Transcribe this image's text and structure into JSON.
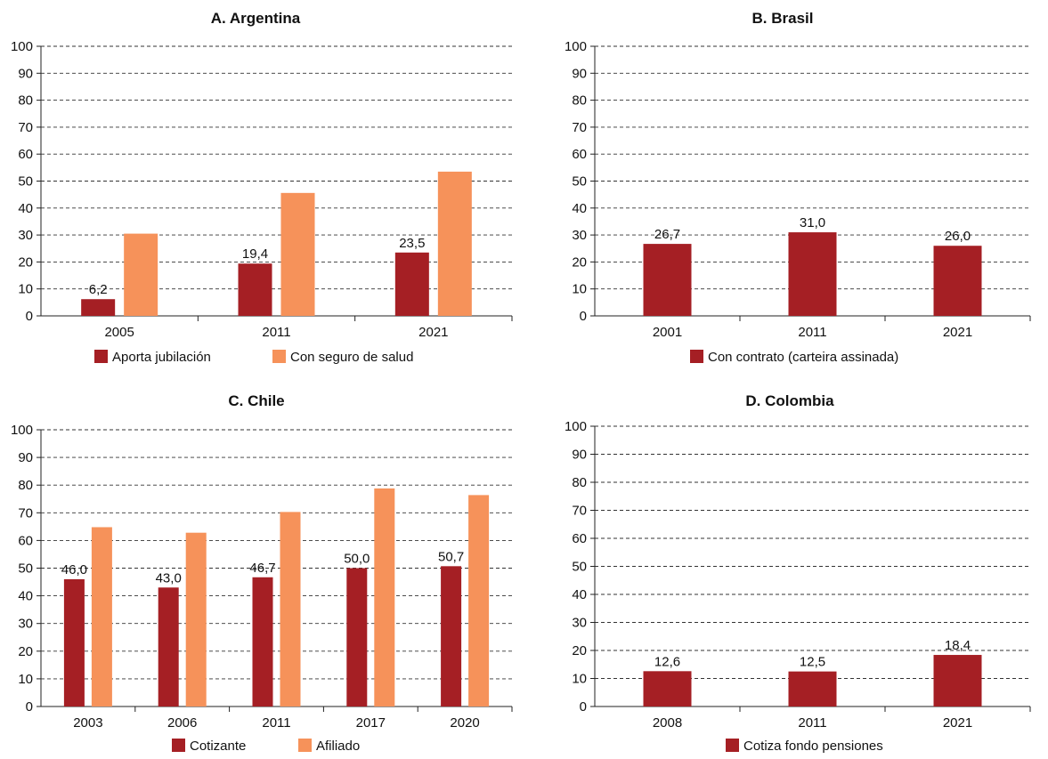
{
  "colors": {
    "dark_red": "#a51f24",
    "orange": "#f6925a"
  },
  "chart_data": [
    {
      "type": "bar",
      "title": "A. Argentina",
      "categories": [
        "2005",
        "2011",
        "2021"
      ],
      "ylim": [
        0,
        100
      ],
      "yticks": [
        0,
        10,
        20,
        30,
        40,
        50,
        60,
        70,
        80,
        90,
        100
      ],
      "grid": true,
      "legend_position": "bottom",
      "series": [
        {
          "name": "Aporta jubilación",
          "color": "#a51f24",
          "values": [
            6.2,
            19.4,
            23.5
          ],
          "labels": [
            "6,2",
            "19,4",
            "23,5"
          ]
        },
        {
          "name": "Con seguro de salud",
          "color": "#f6925a",
          "values": [
            30.5,
            45.6,
            53.5
          ],
          "labels": []
        }
      ]
    },
    {
      "type": "bar",
      "title": "B. Brasil",
      "categories": [
        "2001",
        "2011",
        "2021"
      ],
      "ylim": [
        0,
        100
      ],
      "yticks": [
        0,
        10,
        20,
        30,
        40,
        50,
        60,
        70,
        80,
        90,
        100
      ],
      "grid": true,
      "legend_position": "bottom",
      "series": [
        {
          "name": "Con contrato (carteira assinada)",
          "color": "#a51f24",
          "values": [
            26.7,
            31.0,
            26.0
          ],
          "labels": [
            "26,7",
            "31,0",
            "26,0"
          ]
        }
      ]
    },
    {
      "type": "bar",
      "title": "C. Chile",
      "categories": [
        "2003",
        "2006",
        "2011",
        "2017",
        "2020"
      ],
      "ylim": [
        0,
        100
      ],
      "yticks": [
        0,
        10,
        20,
        30,
        40,
        50,
        60,
        70,
        80,
        90,
        100
      ],
      "grid": true,
      "legend_position": "bottom",
      "series": [
        {
          "name": "Cotizante",
          "color": "#a51f24",
          "values": [
            46.0,
            43.0,
            46.7,
            50.0,
            50.7
          ],
          "labels": [
            "46,0",
            "43,0",
            "46,7",
            "50,0",
            "50,7"
          ]
        },
        {
          "name": "Afiliado",
          "color": "#f6925a",
          "values": [
            64.8,
            62.8,
            70.3,
            78.8,
            76.4
          ],
          "labels": []
        }
      ]
    },
    {
      "type": "bar",
      "title": "D. Colombia",
      "categories": [
        "2008",
        "2011",
        "2021"
      ],
      "ylim": [
        0,
        100
      ],
      "yticks": [
        0,
        10,
        20,
        30,
        40,
        50,
        60,
        70,
        80,
        90,
        100
      ],
      "grid": true,
      "legend_position": "bottom",
      "series": [
        {
          "name": "Cotiza fondo pensiones",
          "color": "#a51f24",
          "values": [
            12.6,
            12.5,
            18.4
          ],
          "labels": [
            "12,6",
            "12,5",
            "18,4"
          ]
        }
      ]
    }
  ]
}
